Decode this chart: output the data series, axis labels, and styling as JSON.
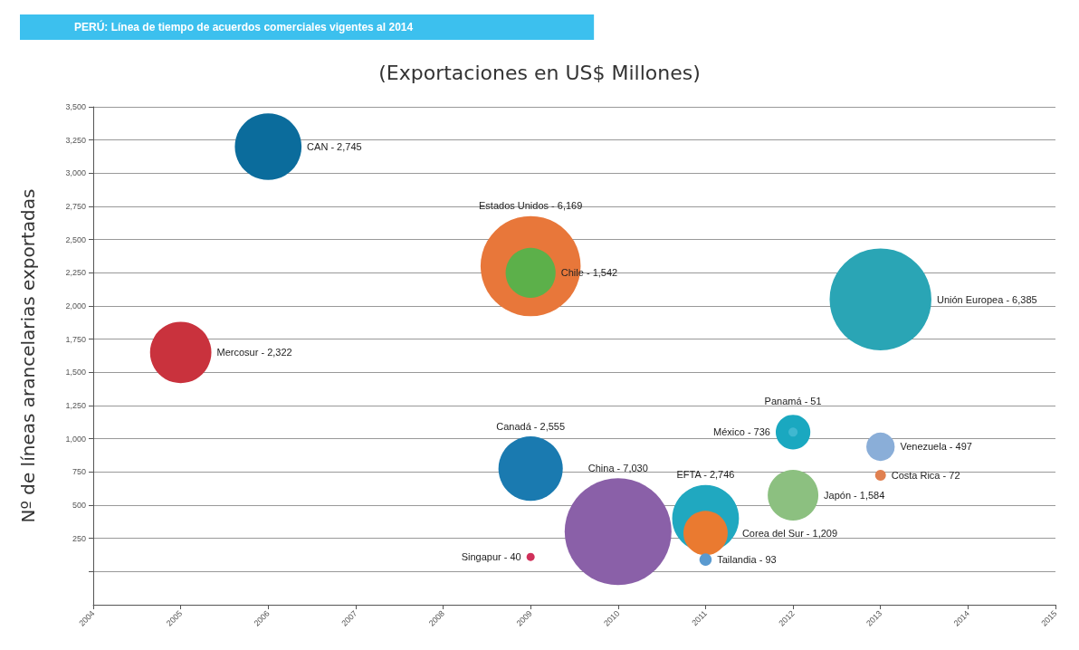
{
  "chart_data": {
    "type": "bubble",
    "title": "PERÚ: Línea de tiempo de acuerdos comerciales vigentes al 2014",
    "subtitle": "(Exportaciones en US$ Millones)",
    "ylabel": "Nº de líneas arancelarias exportadas",
    "x": [
      2006,
      2005,
      2009,
      2009,
      2013,
      2009,
      2010,
      2011,
      2011,
      2011,
      2009,
      2012,
      2012,
      2012,
      2013,
      2013
    ],
    "values": [
      3200,
      1650,
      2300,
      2250,
      2050,
      775,
      300,
      400,
      290,
      90,
      110,
      1050,
      1050,
      575,
      940,
      725
    ],
    "sizes": [
      0.39,
      0.33,
      0.878,
      0.219,
      0.908,
      0.363,
      1,
      0.391,
      0.172,
      0.0132,
      0.0057,
      0.105,
      0.0073,
      0.225,
      0.0707,
      0.0102
    ],
    "annotations": [
      "CAN - 2,745",
      "Mercosur - 2,322",
      "Estados Unidos - 6,169",
      "Chile - 1,542",
      "Unión Europea - 6,385",
      "Canadá - 2,555",
      "China - 7,030",
      "EFTA - 2,746",
      "Corea del Sur - 1,209",
      "Tailandia - 93",
      "Singapur - 40",
      "México - 736",
      "Panamá - 51",
      "Japón - 1,584",
      "Venezuela - 497",
      "Costa Rica - 72"
    ],
    "colors": [
      "#0b6c9c",
      "#c9323d",
      "#e8773a",
      "#5cb04a",
      "#2aa5b5",
      "#1a7ab0",
      "#8a60a8",
      "#20a8c0",
      "#ea7a30",
      "#5a9ad0",
      "#d0305a",
      "#1aa8c0",
      "#40b8d0",
      "#8cc080",
      "#8aaed8",
      "#e08050"
    ],
    "xlim": [
      2004,
      2015
    ],
    "xticks": [
      2004,
      2005,
      2006,
      2007,
      2008,
      2009,
      2010,
      2011,
      2012,
      2013,
      2014,
      2015
    ],
    "ylim": [
      -250,
      3500
    ],
    "yticks": [
      {
        "value": 0,
        "label": null
      },
      250,
      500,
      750,
      {
        "value": 1000,
        "label": "1,000"
      },
      {
        "value": 1250,
        "label": "1,250"
      },
      {
        "value": 1500,
        "label": "1,500"
      },
      {
        "value": 1750,
        "label": "1,750"
      },
      {
        "value": 2000,
        "label": "2,000"
      },
      {
        "value": 2250,
        "label": "2,250"
      },
      {
        "value": 2500,
        "label": "2,500"
      },
      {
        "value": 2750,
        "label": "2,750"
      },
      {
        "value": 3000,
        "label": "3,000"
      },
      {
        "value": 3250,
        "label": "3,250"
      },
      {
        "value": 3500,
        "label": "3,500"
      }
    ],
    "grid": "y"
  }
}
